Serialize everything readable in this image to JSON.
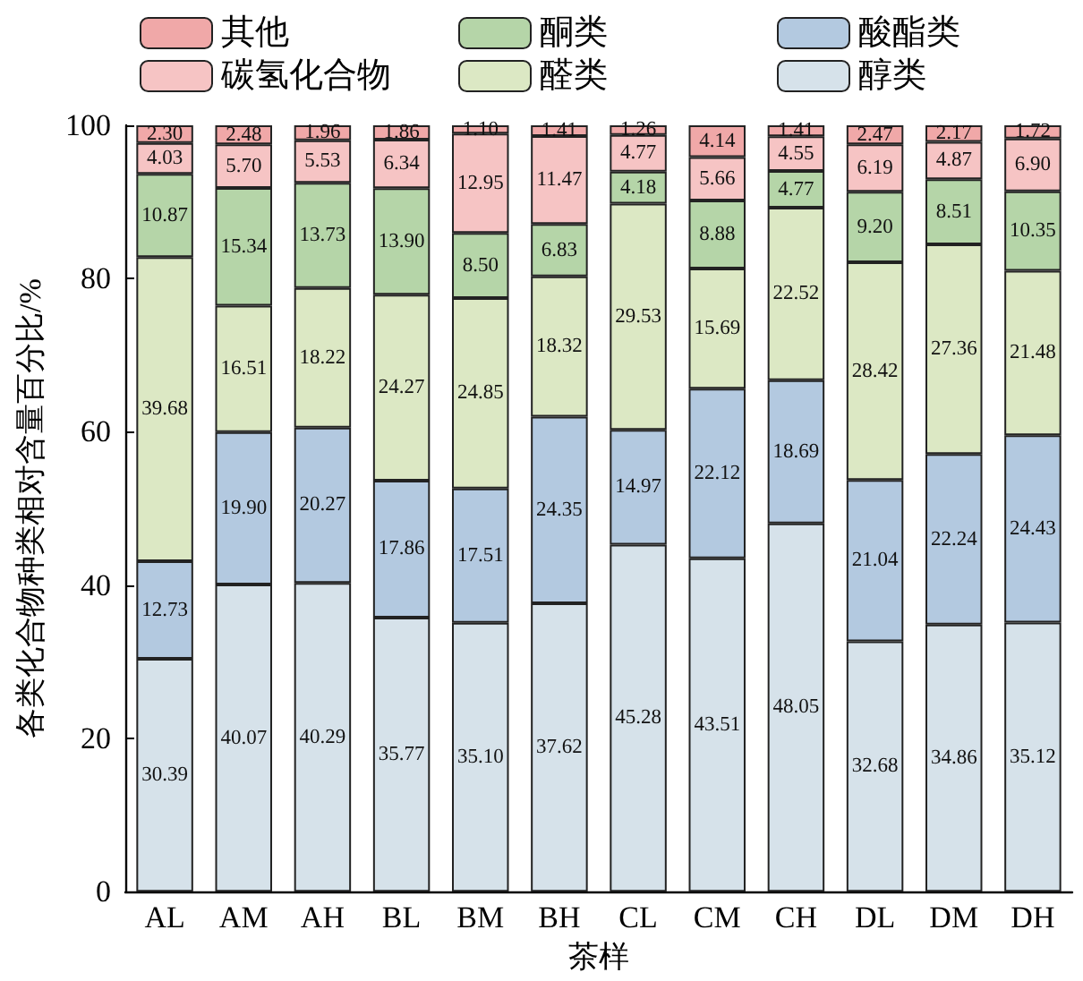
{
  "chart_data": {
    "type": "bar",
    "stacked": true,
    "xlabel": "茶样",
    "ylabel": "各类化合物种类相对含量百分比/%",
    "categories": [
      "AL",
      "AM",
      "AH",
      "BL",
      "BM",
      "BH",
      "CL",
      "CM",
      "CH",
      "DL",
      "DM",
      "DH"
    ],
    "series": [
      {
        "name": "醇类",
        "color": "#d6e2ea",
        "values": [
          30.39,
          40.07,
          40.29,
          35.77,
          35.1,
          37.62,
          45.28,
          43.51,
          48.05,
          32.68,
          34.86,
          35.12
        ],
        "value_labels": [
          "30.39",
          "40.07",
          "40.29",
          "35.77",
          "35.10",
          "37.62",
          "45.28",
          "43.51",
          "48.05",
          "32.68",
          "34.86",
          "35.12"
        ]
      },
      {
        "name": "酸酯类",
        "color": "#b3c9e0",
        "values": [
          12.73,
          19.9,
          20.27,
          17.86,
          17.51,
          24.35,
          14.97,
          22.12,
          18.69,
          21.04,
          22.24,
          24.43
        ],
        "value_labels": [
          "12.73",
          "19.90",
          "20.27",
          "17.86",
          "17.51",
          "24.35",
          "14.97",
          "22.12",
          "18.69",
          "21.04",
          "22.24",
          "24.43"
        ]
      },
      {
        "name": "醛类",
        "color": "#dce8c4",
        "values": [
          39.68,
          16.51,
          18.22,
          24.27,
          24.85,
          18.32,
          29.53,
          15.69,
          22.52,
          28.42,
          27.36,
          21.48
        ],
        "value_labels": [
          "39.68",
          "16.51",
          "18.22",
          "24.27",
          "24.85",
          "18.32",
          "29.53",
          "15.69",
          "22.52",
          "28.42",
          "27.36",
          "21.48"
        ]
      },
      {
        "name": "酮类",
        "color": "#b5d5a8",
        "values": [
          10.87,
          15.34,
          13.73,
          13.9,
          8.5,
          6.83,
          4.18,
          8.88,
          4.77,
          9.2,
          8.51,
          10.35
        ],
        "value_labels": [
          "10.87",
          "15.34",
          "13.73",
          "13.90",
          "8.50",
          "6.83",
          "4.18",
          "8.88",
          "4.77",
          "9.20",
          "8.51",
          "10.35"
        ]
      },
      {
        "name": "碳氢化合物",
        "color": "#f6c4c4",
        "values": [
          4.03,
          5.7,
          5.53,
          6.34,
          12.95,
          11.47,
          4.77,
          5.66,
          4.55,
          6.19,
          4.87,
          6.9
        ],
        "value_labels": [
          "4.03",
          "5.70",
          "5.53",
          "6.34",
          "12.95",
          "11.47",
          "4.77",
          "5.66",
          "4.55",
          "6.19",
          "4.87",
          "6.90"
        ]
      },
      {
        "name": "其他",
        "color": "#f0a8a8",
        "values": [
          2.3,
          2.48,
          1.96,
          1.86,
          1.1,
          1.41,
          1.26,
          4.14,
          1.41,
          2.47,
          2.17,
          1.72
        ],
        "value_labels": [
          "2.30",
          "2.48",
          "1.96",
          "1.86",
          "1.10",
          "1.41",
          "1.26",
          "4.14",
          "1.41",
          "2.47",
          "2.17",
          "1.72"
        ]
      }
    ],
    "ylim": [
      0,
      100
    ],
    "yticks": [
      0,
      20,
      40,
      60,
      80,
      100
    ],
    "grid": false,
    "legend": "top"
  }
}
